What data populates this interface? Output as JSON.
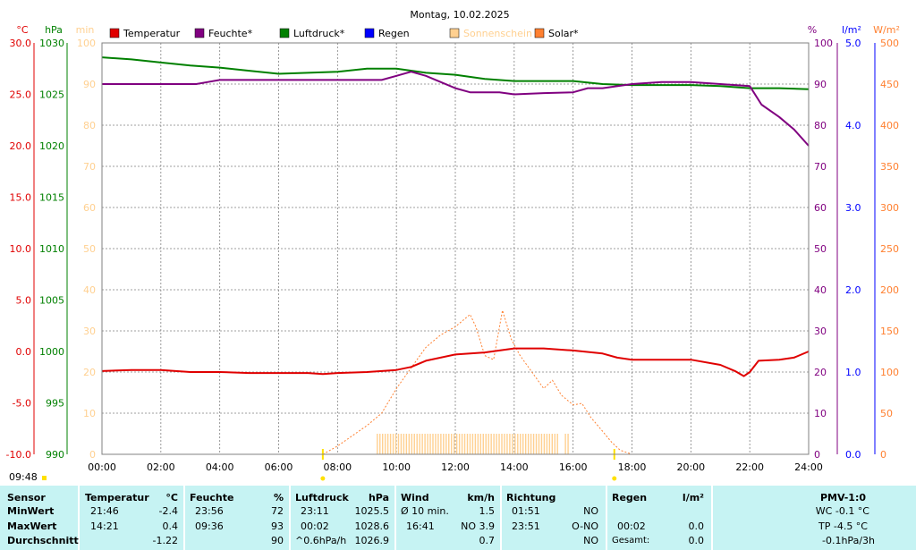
{
  "title": "Montag, 10.02.2025",
  "current_time": "09:48",
  "legend": [
    {
      "label": "Temperatur",
      "color": "#e00000"
    },
    {
      "label": "Feuchte*",
      "color": "#800080"
    },
    {
      "label": "Luftdruck*",
      "color": "#008000"
    },
    {
      "label": "Regen",
      "color": "#0000ff"
    },
    {
      "label": "Sonnenschein",
      "color": "#ffd090"
    },
    {
      "label": "Solar*",
      "color": "#ff8030"
    }
  ],
  "colors": {
    "temperature": "#e00000",
    "humidity": "#800080",
    "pressure": "#008000",
    "rain": "#0000ff",
    "sunshine": "#ffd090",
    "solar": "#ff8030",
    "grid": "#808080",
    "stats_bg": "#c6f3f3"
  },
  "chart_data": {
    "type": "line",
    "title": "Montag, 10.02.2025",
    "grid": true,
    "legend_position": "top",
    "x_ticks": [
      "00:00",
      "02:00",
      "04:00",
      "06:00",
      "08:00",
      "10:00",
      "12:00",
      "14:00",
      "16:00",
      "18:00",
      "20:00",
      "22:00",
      "24:00"
    ],
    "x_range_hours": [
      0,
      24
    ],
    "axes": {
      "temperature": {
        "unit": "°C",
        "range": [
          -10,
          30
        ],
        "ticks": [
          "30.0",
          "25.0",
          "20.0",
          "15.0",
          "10.0",
          "5.0",
          "0.0",
          "-5.0",
          "-10.0"
        ]
      },
      "pressure": {
        "unit": "hPa",
        "range": [
          990,
          1030
        ],
        "ticks": [
          "1030",
          "1025",
          "1020",
          "1015",
          "1010",
          "1005",
          "1000",
          "995",
          "990"
        ]
      },
      "sunshine": {
        "unit": "min",
        "range": [
          0,
          100
        ],
        "ticks": [
          "100",
          "90",
          "80",
          "70",
          "60",
          "50",
          "40",
          "30",
          "20",
          "10",
          "0"
        ]
      },
      "humidity": {
        "unit": "%",
        "range": [
          0,
          100
        ],
        "ticks": [
          "100",
          "90",
          "80",
          "70",
          "60",
          "50",
          "40",
          "30",
          "20",
          "10",
          "0"
        ]
      },
      "rain": {
        "unit": "l/m²",
        "range": [
          0,
          5
        ],
        "ticks": [
          "5.0",
          "4.0",
          "3.0",
          "2.0",
          "1.0",
          "0.0"
        ]
      },
      "solar": {
        "unit": "W/m²",
        "range": [
          0,
          500
        ],
        "ticks": [
          "500",
          "450",
          "400",
          "350",
          "300",
          "250",
          "200",
          "150",
          "100",
          "50",
          "0"
        ]
      }
    },
    "series": [
      {
        "name": "Temperatur",
        "axis": "temperature",
        "points": [
          [
            0,
            -1.9
          ],
          [
            1,
            -1.8
          ],
          [
            2,
            -1.8
          ],
          [
            3,
            -2.0
          ],
          [
            4,
            -2.0
          ],
          [
            5,
            -2.1
          ],
          [
            6,
            -2.1
          ],
          [
            7,
            -2.1
          ],
          [
            7.5,
            -2.2
          ],
          [
            8,
            -2.1
          ],
          [
            9,
            -2.0
          ],
          [
            10,
            -1.8
          ],
          [
            10.5,
            -1.5
          ],
          [
            11,
            -0.9
          ],
          [
            12,
            -0.3
          ],
          [
            13,
            -0.1
          ],
          [
            14,
            0.3
          ],
          [
            15,
            0.3
          ],
          [
            16,
            0.1
          ],
          [
            17,
            -0.2
          ],
          [
            17.5,
            -0.6
          ],
          [
            18,
            -0.8
          ],
          [
            19,
            -0.8
          ],
          [
            20,
            -0.8
          ],
          [
            21,
            -1.3
          ],
          [
            21.5,
            -1.9
          ],
          [
            21.8,
            -2.4
          ],
          [
            22,
            -2.0
          ],
          [
            22.3,
            -0.9
          ],
          [
            23,
            -0.8
          ],
          [
            23.5,
            -0.6
          ],
          [
            24,
            0.0
          ]
        ]
      },
      {
        "name": "Feuchte*",
        "axis": "humidity",
        "points": [
          [
            0,
            90
          ],
          [
            1,
            90
          ],
          [
            2,
            90
          ],
          [
            3,
            90
          ],
          [
            3.2,
            90
          ],
          [
            3.6,
            90.5
          ],
          [
            4,
            91
          ],
          [
            5,
            91
          ],
          [
            6,
            91
          ],
          [
            7,
            91
          ],
          [
            8,
            91
          ],
          [
            9,
            91
          ],
          [
            9.5,
            91
          ],
          [
            10,
            92
          ],
          [
            10.5,
            93
          ],
          [
            11,
            92
          ],
          [
            12,
            89
          ],
          [
            12.5,
            88
          ],
          [
            13,
            88
          ],
          [
            13.5,
            88
          ],
          [
            14,
            87.5
          ],
          [
            15,
            87.8
          ],
          [
            16,
            88
          ],
          [
            16.5,
            89
          ],
          [
            17,
            89
          ],
          [
            18,
            90
          ],
          [
            19,
            90.5
          ],
          [
            20,
            90.5
          ],
          [
            21,
            90
          ],
          [
            22,
            89.5
          ],
          [
            22.4,
            85
          ],
          [
            23,
            82
          ],
          [
            23.5,
            79
          ],
          [
            24,
            75
          ]
        ]
      },
      {
        "name": "Luftdruck*",
        "axis": "pressure",
        "points": [
          [
            0,
            1028.6
          ],
          [
            1,
            1028.4
          ],
          [
            2,
            1028.1
          ],
          [
            3,
            1027.8
          ],
          [
            4,
            1027.6
          ],
          [
            5,
            1027.3
          ],
          [
            6,
            1027.0
          ],
          [
            7,
            1027.1
          ],
          [
            8,
            1027.2
          ],
          [
            9,
            1027.5
          ],
          [
            10,
            1027.5
          ],
          [
            11,
            1027.1
          ],
          [
            12,
            1026.9
          ],
          [
            13,
            1026.5
          ],
          [
            14,
            1026.3
          ],
          [
            15,
            1026.3
          ],
          [
            16,
            1026.3
          ],
          [
            17,
            1026.0
          ],
          [
            18,
            1025.9
          ],
          [
            19,
            1025.9
          ],
          [
            20,
            1025.9
          ],
          [
            21,
            1025.8
          ],
          [
            22,
            1025.6
          ],
          [
            23,
            1025.6
          ],
          [
            24,
            1025.5
          ]
        ]
      },
      {
        "name": "Solar*",
        "axis": "solar",
        "points": [
          [
            7.5,
            0
          ],
          [
            8,
            10
          ],
          [
            9,
            35
          ],
          [
            9.5,
            50
          ],
          [
            10,
            80
          ],
          [
            10.5,
            105
          ],
          [
            11,
            130
          ],
          [
            11.5,
            145
          ],
          [
            12,
            155
          ],
          [
            12.5,
            170
          ],
          [
            12.7,
            155
          ],
          [
            13,
            120
          ],
          [
            13.3,
            115
          ],
          [
            13.6,
            175
          ],
          [
            13.9,
            140
          ],
          [
            14.2,
            120
          ],
          [
            14.6,
            100
          ],
          [
            15,
            80
          ],
          [
            15.3,
            90
          ],
          [
            15.6,
            72
          ],
          [
            16,
            60
          ],
          [
            16.3,
            62
          ],
          [
            16.6,
            45
          ],
          [
            17,
            28
          ],
          [
            17.3,
            15
          ],
          [
            17.6,
            5
          ],
          [
            18,
            0
          ]
        ]
      },
      {
        "name": "Sonnenschein",
        "axis": "sunshine",
        "bars": {
          "start_hour": 9.35,
          "end_hour": 15.9,
          "gap_hours": [
            15.5,
            15.65
          ],
          "value": 5
        }
      }
    ],
    "markers": {
      "sunrise_hour": 7.5,
      "sunset_hour": 17.4
    }
  },
  "stats": {
    "sensor": {
      "header": "Sensor",
      "min": "MinWert",
      "max": "MaxWert",
      "avg": "Durchschnitt"
    },
    "temperature": {
      "header": "Temperatur",
      "unit": "°C",
      "min_time": "21:46",
      "min": "-2.4",
      "max_time": "14:21",
      "max": "0.4",
      "avg": "-1.22"
    },
    "humidity": {
      "header": "Feuchte",
      "unit": "%",
      "min_time": "23:56",
      "min": "72",
      "max_time": "09:36",
      "max": "93",
      "avg": "90"
    },
    "pressure": {
      "header": "Luftdruck",
      "unit": "hPa",
      "min_time": "23:11",
      "min": "1025.5",
      "max_time": "00:02",
      "max": "1028.6",
      "trend": "^0.6hPa/h",
      "avg": "1026.9"
    },
    "wind": {
      "header": "Wind",
      "unit": "km/h",
      "min_label": "Ø 10 min.",
      "min": "1.5",
      "max_time": "16:41",
      "max": "NO 3.9",
      "avg": "0.7"
    },
    "direction": {
      "header": "Richtung",
      "min_time": "01:51",
      "min": "NO",
      "max_time": "23:51",
      "max": "O-NO",
      "avg": "NO"
    },
    "rain": {
      "header": "Regen",
      "unit": "l/m²",
      "min_time": "",
      "min": "",
      "max_time": "00:02",
      "max": "0.0",
      "total_label": "Gesamt:",
      "total": "0.0"
    },
    "pmv": {
      "header": "PMV-1:0",
      "line1": "WC -0.1 °C",
      "line2": "TP -4.5 °C",
      "line3": "-0.1hPa/3h"
    }
  }
}
